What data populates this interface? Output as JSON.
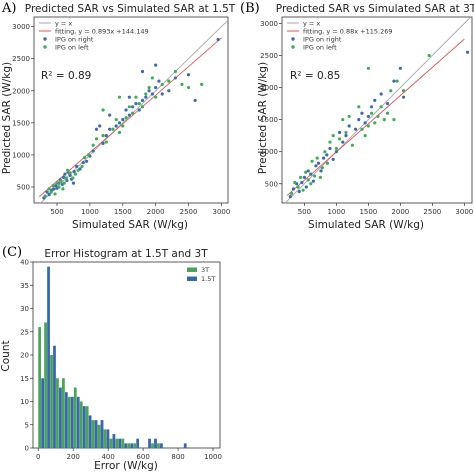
{
  "colors": {
    "ipg_right": "#4169b0",
    "ipg_left": "#3fae5a",
    "identity_line": "#a8a8a8",
    "fit_line": "#d9595a",
    "bar_3T": "#4aa35a",
    "bar_1p5T": "#3a66ad"
  },
  "chart_data": [
    {
      "panel_label": "A)",
      "type": "scatter",
      "title": "Predicted SAR vs Simulated SAR at 1.5T",
      "xlabel": "Simulated SAR (W/kg)",
      "ylabel": "Predicted SAR (W/kg)",
      "xlim": [
        150,
        3100
      ],
      "ylim": [
        250,
        3150
      ],
      "xticks": [
        500,
        1000,
        1500,
        2000,
        2500,
        3000
      ],
      "yticks": [
        500,
        1000,
        1500,
        2000,
        2500,
        3000
      ],
      "grid": false,
      "legend_position": "top-left",
      "legend": [
        "y = x",
        "fitting, y = 0.893x +144.149",
        "IPG on right",
        "IPG on left"
      ],
      "annotation": "R² = 0.89",
      "fit": {
        "slope": 0.893,
        "intercept": 144.149
      },
      "series": [
        {
          "name": "IPG on right",
          "color_key": "ipg_right",
          "points": [
            [
              300,
              330
            ],
            [
              350,
              420
            ],
            [
              380,
              380
            ],
            [
              420,
              450
            ],
            [
              450,
              470
            ],
            [
              480,
              520
            ],
            [
              500,
              480
            ],
            [
              520,
              560
            ],
            [
              550,
              610
            ],
            [
              580,
              540
            ],
            [
              600,
              650
            ],
            [
              620,
              700
            ],
            [
              650,
              600
            ],
            [
              680,
              720
            ],
            [
              700,
              680
            ],
            [
              720,
              620
            ],
            [
              750,
              560
            ],
            [
              760,
              740
            ],
            [
              800,
              820
            ],
            [
              850,
              780
            ],
            [
              900,
              880
            ],
            [
              950,
              900
            ],
            [
              1000,
              980
            ],
            [
              1050,
              1060
            ],
            [
              1100,
              1400
            ],
            [
              1150,
              1450
            ],
            [
              1200,
              1180
            ],
            [
              1250,
              1300
            ],
            [
              1300,
              1620
            ],
            [
              1400,
              1450
            ],
            [
              1450,
              1500
            ],
            [
              1500,
              1550
            ],
            [
              1550,
              1700
            ],
            [
              1600,
              1620
            ],
            [
              1650,
              1750
            ],
            [
              1700,
              1800
            ],
            [
              1750,
              1700
            ],
            [
              1800,
              1850
            ],
            [
              1850,
              1900
            ],
            [
              1900,
              2000
            ],
            [
              1950,
              1950
            ],
            [
              2000,
              2050
            ],
            [
              2050,
              2150
            ],
            [
              2100,
              1950
            ],
            [
              2200,
              2000
            ],
            [
              2300,
              2200
            ],
            [
              2500,
              2250
            ],
            [
              2600,
              1850
            ],
            [
              2950,
              2800
            ],
            [
              1800,
              2300
            ],
            [
              2000,
              2400
            ],
            [
              1600,
              1900
            ],
            [
              1300,
              1400
            ]
          ]
        },
        {
          "name": "IPG on left",
          "color_key": "ipg_left",
          "points": [
            [
              320,
              360
            ],
            [
              380,
              470
            ],
            [
              410,
              420
            ],
            [
              440,
              520
            ],
            [
              470,
              390
            ],
            [
              500,
              560
            ],
            [
              530,
              500
            ],
            [
              560,
              590
            ],
            [
              590,
              470
            ],
            [
              610,
              560
            ],
            [
              640,
              640
            ],
            [
              660,
              760
            ],
            [
              700,
              720
            ],
            [
              740,
              640
            ],
            [
              780,
              700
            ],
            [
              820,
              760
            ],
            [
              880,
              820
            ],
            [
              920,
              960
            ],
            [
              980,
              1000
            ],
            [
              1050,
              1150
            ],
            [
              1100,
              1250
            ],
            [
              1200,
              1300
            ],
            [
              1250,
              1200
            ],
            [
              1350,
              1400
            ],
            [
              1400,
              1550
            ],
            [
              1450,
              1350
            ],
            [
              1500,
              1450
            ],
            [
              1550,
              1580
            ],
            [
              1600,
              1750
            ],
            [
              1650,
              1650
            ],
            [
              1700,
              1900
            ],
            [
              1750,
              1800
            ],
            [
              1800,
              1750
            ],
            [
              1850,
              1950
            ],
            [
              1900,
              2050
            ],
            [
              1950,
              2200
            ],
            [
              2000,
              1900
            ],
            [
              2100,
              2100
            ],
            [
              2200,
              2150
            ],
            [
              2300,
              2300
            ],
            [
              2400,
              2100
            ],
            [
              2500,
              2050
            ],
            [
              2700,
              2100
            ],
            [
              1450,
              1900
            ],
            [
              1200,
              1700
            ]
          ]
        }
      ]
    },
    {
      "panel_label": "(B)",
      "type": "scatter",
      "title": "Predicted SAR vs Simulated SAR at 3T",
      "xlabel": "Simulated SAR (W/kg)",
      "ylabel": "Predicted SAR (W/kg)",
      "xlim": [
        150,
        3120
      ],
      "ylim": [
        200,
        3100
      ],
      "xticks": [
        500,
        1000,
        1500,
        2000,
        2500,
        3000
      ],
      "yticks": [
        500,
        1000,
        1500,
        2000,
        2500,
        3000
      ],
      "grid": false,
      "legend_position": "top-left",
      "legend": [
        "y = x",
        "fitting, y = 0.88x +115.269",
        "IPG on right",
        "IPG on left"
      ],
      "annotation": "R² = 0.85",
      "fit": {
        "slope": 0.88,
        "intercept": 115.269
      },
      "series": [
        {
          "name": "IPG on right",
          "color_key": "ipg_right",
          "points": [
            [
              280,
              300
            ],
            [
              330,
              420
            ],
            [
              380,
              500
            ],
            [
              420,
              380
            ],
            [
              460,
              520
            ],
            [
              500,
              600
            ],
            [
              530,
              450
            ],
            [
              560,
              700
            ],
            [
              600,
              650
            ],
            [
              640,
              540
            ],
            [
              680,
              780
            ],
            [
              720,
              820
            ],
            [
              760,
              700
            ],
            [
              800,
              900
            ],
            [
              850,
              950
            ],
            [
              900,
              1050
            ],
            [
              950,
              880
            ],
            [
              1000,
              1000
            ],
            [
              1050,
              1300
            ],
            [
              1100,
              1150
            ],
            [
              1150,
              1250
            ],
            [
              1200,
              1400
            ],
            [
              1300,
              1350
            ],
            [
              1350,
              1500
            ],
            [
              1400,
              1600
            ],
            [
              1450,
              1450
            ],
            [
              1500,
              1550
            ],
            [
              1550,
              1700
            ],
            [
              1600,
              1800
            ],
            [
              1700,
              1900
            ],
            [
              1800,
              1750
            ],
            [
              1900,
              2100
            ],
            [
              2000,
              2300
            ],
            [
              2050,
              1850
            ],
            [
              3050,
              2550
            ]
          ]
        },
        {
          "name": "IPG on left",
          "color_key": "ipg_left",
          "points": [
            [
              300,
              350
            ],
            [
              350,
              520
            ],
            [
              400,
              450
            ],
            [
              440,
              600
            ],
            [
              480,
              400
            ],
            [
              520,
              680
            ],
            [
              560,
              560
            ],
            [
              600,
              500
            ],
            [
              620,
              850
            ],
            [
              660,
              620
            ],
            [
              700,
              900
            ],
            [
              750,
              600
            ],
            [
              780,
              750
            ],
            [
              820,
              1000
            ],
            [
              860,
              820
            ],
            [
              900,
              1150
            ],
            [
              950,
              1250
            ],
            [
              1000,
              1050
            ],
            [
              1050,
              1200
            ],
            [
              1100,
              1500
            ],
            [
              1150,
              1300
            ],
            [
              1200,
              1550
            ],
            [
              1250,
              1100
            ],
            [
              1350,
              1700
            ],
            [
              1400,
              1350
            ],
            [
              1450,
              1250
            ],
            [
              1500,
              1400
            ],
            [
              1550,
              1600
            ],
            [
              1600,
              1450
            ],
            [
              1650,
              1550
            ],
            [
              1700,
              1700
            ],
            [
              1750,
              1500
            ],
            [
              1800,
              1600
            ],
            [
              1850,
              1950
            ],
            [
              1900,
              1500
            ],
            [
              1950,
              2100
            ],
            [
              2050,
              1950
            ],
            [
              2450,
              2500
            ],
            [
              1500,
              2300
            ]
          ]
        }
      ]
    },
    {
      "panel_label": "(C)",
      "type": "bar",
      "title": "Error Histogram at 1.5T and 3T",
      "xlabel": "Error (W/kg)",
      "ylabel": "Count",
      "xlim": [
        -30,
        1040
      ],
      "ylim": [
        0,
        40
      ],
      "xticks": [
        0,
        200,
        400,
        600,
        800,
        1000
      ],
      "yticks": [
        0,
        5,
        10,
        15,
        20,
        25,
        30,
        35,
        40
      ],
      "grid": false,
      "legend_position": "top-right",
      "bin_width": 34,
      "bin_starts": [
        0,
        34,
        68,
        102,
        136,
        170,
        204,
        238,
        272,
        306,
        340,
        374,
        408,
        442,
        476,
        510,
        544,
        578,
        612,
        646,
        680,
        714,
        748,
        782,
        816
      ],
      "series": [
        {
          "name": "3T",
          "color_key": "bar_3T",
          "values": [
            26,
            27,
            20,
            15,
            15,
            11,
            13,
            10,
            9,
            6,
            5,
            4,
            2,
            2,
            2,
            1,
            1,
            0,
            0,
            1,
            1,
            0,
            0,
            0,
            0
          ]
        },
        {
          "name": "1.5T",
          "color_key": "bar_1p5T",
          "values": [
            15,
            39,
            22,
            13,
            12,
            11,
            11,
            9,
            7,
            6,
            6,
            4,
            3,
            2,
            1,
            1,
            2,
            0,
            2,
            2,
            1,
            0,
            0,
            0,
            1
          ]
        }
      ]
    }
  ]
}
